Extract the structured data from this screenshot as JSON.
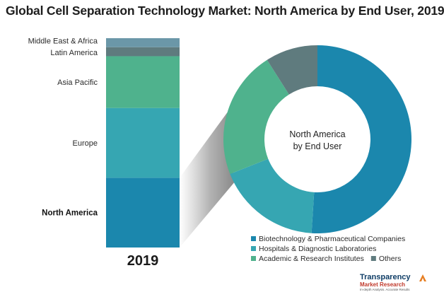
{
  "title": "Global Cell Separation Technology Market: North America by End User, 2019",
  "chart_data": [
    {
      "type": "bar",
      "stacked": true,
      "categories": [
        "2019"
      ],
      "series": [
        {
          "name": "North America",
          "values": [
            31
          ],
          "color": "#1b87ad"
        },
        {
          "name": "Europe",
          "values": [
            31
          ],
          "color": "#36a6b2"
        },
        {
          "name": "Asia Pacific",
          "values": [
            23
          ],
          "color": "#4fb28d"
        },
        {
          "name": "Latin America",
          "values": [
            4
          ],
          "color": "#5f7b7e"
        },
        {
          "name": "Middle East & Africa",
          "values": [
            4
          ],
          "color": "#6b97a8"
        }
      ],
      "highlighted_series": "North America"
    },
    {
      "type": "pie",
      "donut": true,
      "center_label": [
        "North America",
        "by End User"
      ],
      "slices": [
        {
          "name": "Biotechnology & Pharmaceutical Companies",
          "value": 51,
          "color": "#1b87ad"
        },
        {
          "name": "Hospitals & Diagnostic Laboratories",
          "value": 18,
          "color": "#36a6b2"
        },
        {
          "name": "Academic & Research Institutes",
          "value": 22,
          "color": "#4fb28d"
        },
        {
          "name": "Others",
          "value": 9,
          "color": "#5f7b7e"
        }
      ],
      "legend_position": "bottom-right"
    }
  ],
  "logo": {
    "name": "Transparency",
    "subtitle": "Market Research",
    "tagline": "In-depth Analysis. Accurate Results"
  }
}
